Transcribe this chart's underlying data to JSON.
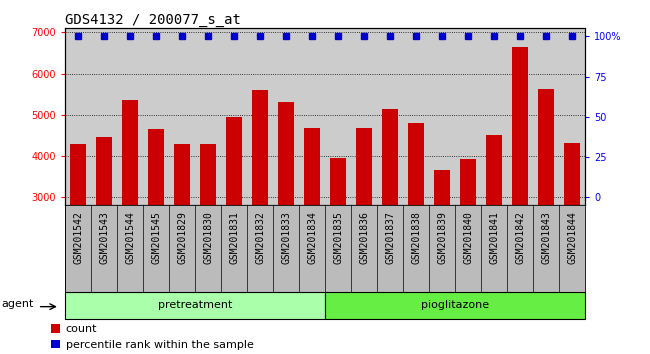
{
  "title": "GDS4132 / 200077_s_at",
  "samples": [
    "GSM201542",
    "GSM201543",
    "GSM201544",
    "GSM201545",
    "GSM201829",
    "GSM201830",
    "GSM201831",
    "GSM201832",
    "GSM201833",
    "GSM201834",
    "GSM201835",
    "GSM201836",
    "GSM201837",
    "GSM201838",
    "GSM201839",
    "GSM201840",
    "GSM201841",
    "GSM201842",
    "GSM201843",
    "GSM201844"
  ],
  "counts": [
    4300,
    4450,
    5350,
    4650,
    4300,
    4280,
    4950,
    5600,
    5320,
    4680,
    3950,
    4680,
    5150,
    4800,
    3650,
    3920,
    4500,
    6650,
    5620,
    4320
  ],
  "percentile_vals": [
    100,
    100,
    100,
    100,
    100,
    100,
    100,
    100,
    100,
    100,
    100,
    100,
    100,
    100,
    100,
    100,
    100,
    100,
    100,
    100
  ],
  "ylim_left": [
    2800,
    7100
  ],
  "ylim_right": [
    -5,
    105
  ],
  "yticks_left": [
    3000,
    4000,
    5000,
    6000,
    7000
  ],
  "yticks_right": [
    0,
    25,
    50,
    75,
    100
  ],
  "yright_labels": [
    "0",
    "25",
    "50",
    "75",
    "100%"
  ],
  "bar_color": "#cc0000",
  "percentile_color": "#0000cc",
  "bg_color": "#cccccc",
  "xtick_bg": "#bbbbbb",
  "pretreatment_label": "pretreatment",
  "pioglitazone_label": "pioglitazone",
  "agent_label": "agent",
  "count_legend": "count",
  "percentile_legend": "percentile rank within the sample",
  "pretreatment_bg": "#aaffaa",
  "pioglitazone_bg": "#66ee44",
  "n_pretreatment": 10,
  "n_pioglitazone": 10,
  "title_fontsize": 10,
  "tick_fontsize": 7,
  "legend_fontsize": 8,
  "label_fontsize": 8,
  "agent_fontsize": 8
}
